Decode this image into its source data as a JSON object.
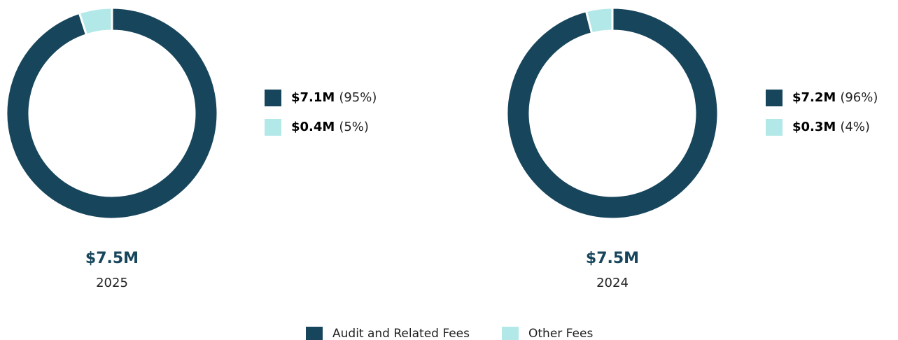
{
  "chart_data": [
    {
      "type": "pie",
      "donut": true,
      "values": [
        95,
        5
      ],
      "value_labels": [
        "(95%)",
        "(5%)"
      ],
      "amounts": [
        7100000,
        400000
      ],
      "amount_labels": [
        "$7.1M",
        "$0.4M"
      ],
      "colors": [
        "#17455b",
        "#b3e8e8"
      ],
      "total": 7500000,
      "total_label": "$7.5M",
      "subtitle": "2025"
    },
    {
      "type": "pie",
      "donut": true,
      "values": [
        96,
        4
      ],
      "value_labels": [
        "(96%)",
        "(4%)"
      ],
      "amounts": [
        7200000,
        300000
      ],
      "amount_labels": [
        "$7.2M",
        "$0.3M"
      ],
      "colors": [
        "#17455b",
        "#b3e8e8"
      ],
      "total": 7500000,
      "total_label": "$7.5M",
      "subtitle": "2024"
    }
  ],
  "legend": {
    "labels": [
      "Audit and Related Fees",
      "Other Fees"
    ],
    "colors": [
      "#17455b",
      "#b3e8e8"
    ]
  }
}
